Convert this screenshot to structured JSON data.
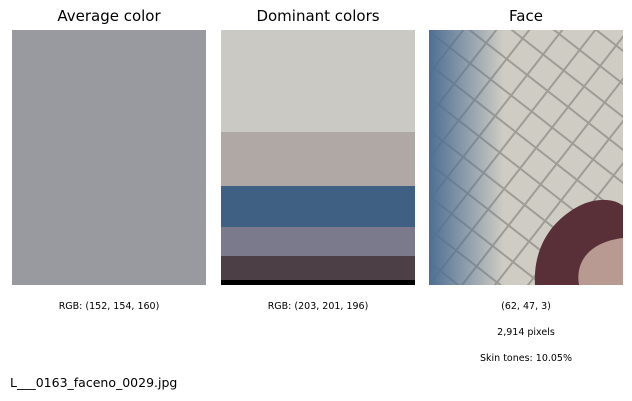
{
  "average": {
    "title": "Average color",
    "rgb_label": "RGB: (152, 154, 160)",
    "color": "#989aa0"
  },
  "dominant": {
    "title": "Dominant colors",
    "rgb_label": "RGB: (203, 201, 196)",
    "bands": [
      {
        "color": "#cbc9c4",
        "share": 0.4
      },
      {
        "color": "#b0a8a5",
        "share": 0.21
      },
      {
        "color": "#3f5f83",
        "share": 0.16
      },
      {
        "color": "#7a7a8c",
        "share": 0.115
      },
      {
        "color": "#4d3f46",
        "share": 0.095
      },
      {
        "color": "#000000",
        "share": 0.02
      }
    ]
  },
  "face": {
    "title": "Face",
    "size_label": "(62, 47, 3)",
    "pixels_label": "2,914 pixels",
    "skin_label": "Skin tones: 10.05%",
    "colors": {
      "background": "#cfccc4",
      "net": "#9f9c96",
      "left_edge": "#4e6f94",
      "hair": "#5a3038",
      "skin": "#b89a92"
    }
  },
  "file": {
    "name": "L___0163_faceno_0029.jpg"
  }
}
